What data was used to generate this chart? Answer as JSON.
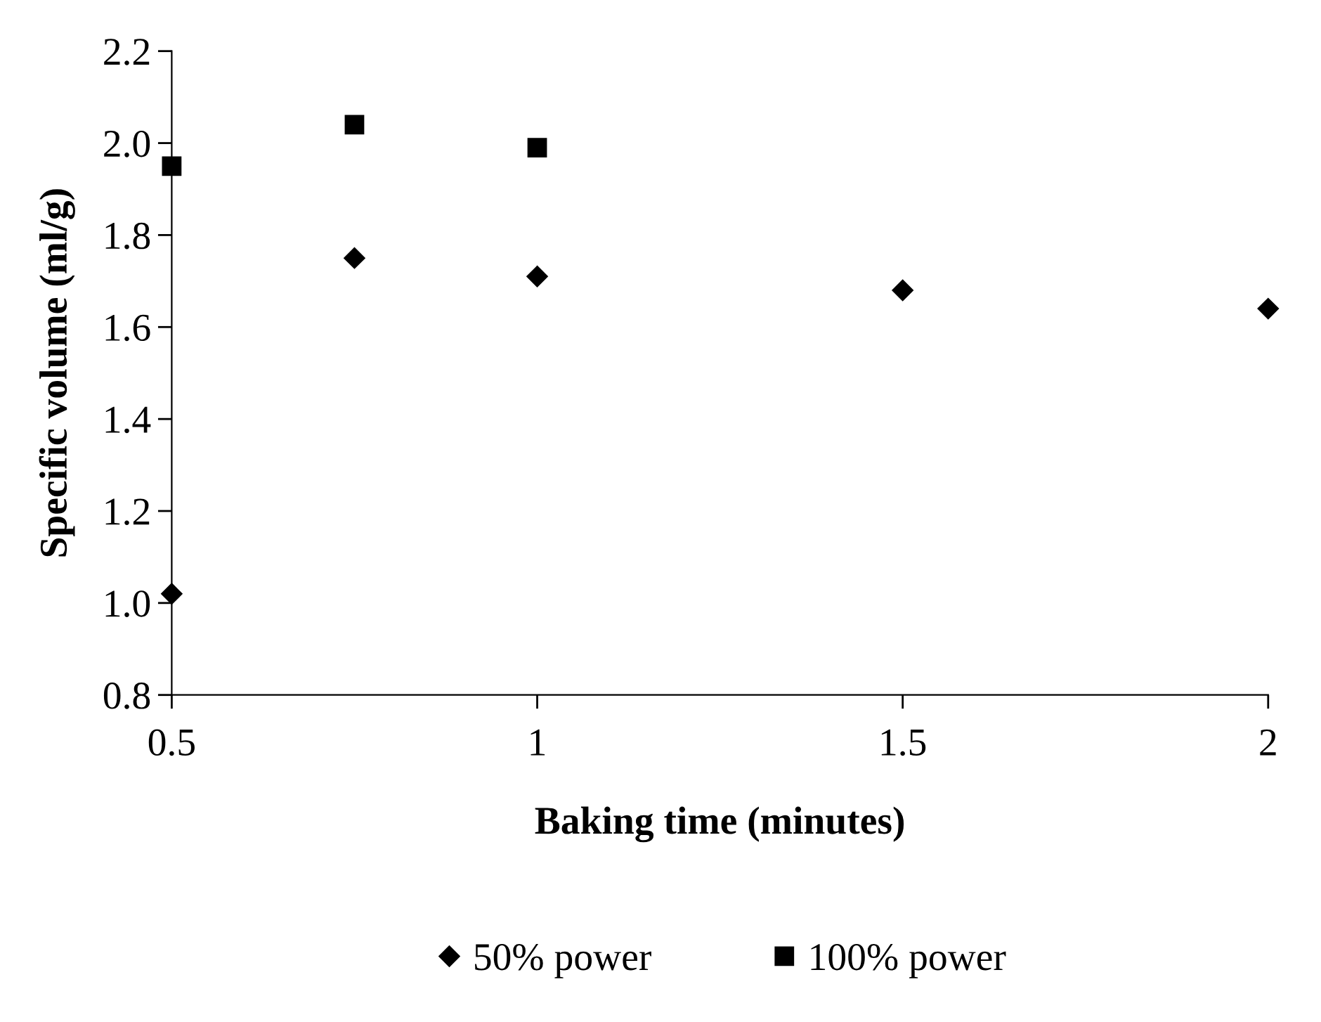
{
  "chart_data": {
    "type": "scatter",
    "xlabel": "Baking time (minutes)",
    "ylabel": "Specific volume (ml/g)",
    "xlim": [
      0.5,
      2
    ],
    "xticks": [
      0.5,
      1,
      1.5,
      2
    ],
    "ylim": [
      0.8,
      2.2
    ],
    "yticks": [
      0.8,
      {
        "value": 1,
        "label": "1.0"
      },
      1.2,
      1.4,
      1.6,
      1.8,
      {
        "value": 2,
        "label": "2.0"
      },
      2.2
    ],
    "grid": false,
    "legend": "bottom",
    "series": [
      {
        "name": "50% power",
        "color": "#000000",
        "marker": "diamond",
        "x": [
          0.5,
          0.75,
          1,
          1.5,
          2
        ],
        "values": [
          1.02,
          1.75,
          1.71,
          1.68,
          1.64
        ]
      },
      {
        "name": "100% power",
        "color": "#000000",
        "marker": "square",
        "x": [
          0.5,
          0.75,
          1
        ],
        "values": [
          1.95,
          2.04,
          1.99
        ]
      }
    ]
  }
}
